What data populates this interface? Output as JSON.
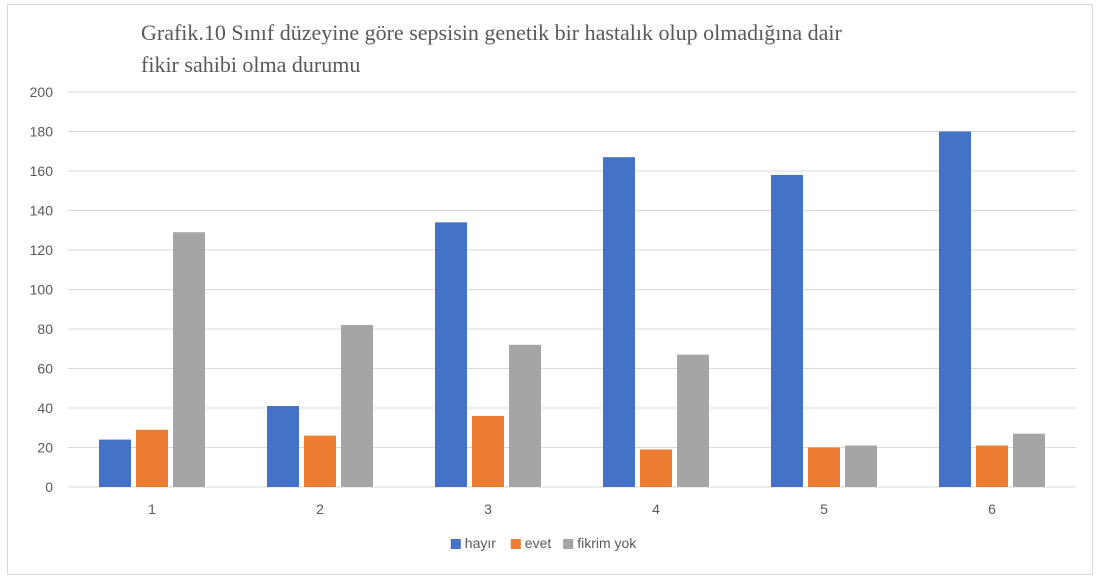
{
  "chart_data": {
    "type": "bar",
    "title_lines": [
      "Grafik.10 Sınıf düzeyine göre sepsisin genetik bir hastalık olup olmadığına dair",
      "fikir sahibi olma durumu"
    ],
    "categories": [
      "1",
      "2",
      "3",
      "4",
      "5",
      "6"
    ],
    "series": [
      {
        "name": "hayır",
        "color": "#4472C4",
        "values": [
          24,
          41,
          134,
          167,
          158,
          180
        ]
      },
      {
        "name": "evet",
        "color": "#ED7D31",
        "values": [
          29,
          26,
          36,
          19,
          20,
          21
        ]
      },
      {
        "name": "fikrim yok",
        "color": "#A5A5A5",
        "values": [
          129,
          82,
          72,
          67,
          21,
          27
        ]
      }
    ],
    "y_ticks": [
      "0",
      "20",
      "40",
      "60",
      "80",
      "100",
      "120",
      "140",
      "160",
      "180",
      "200"
    ],
    "ylim": [
      0,
      200
    ],
    "grid": true,
    "legend_position": "bottom"
  }
}
